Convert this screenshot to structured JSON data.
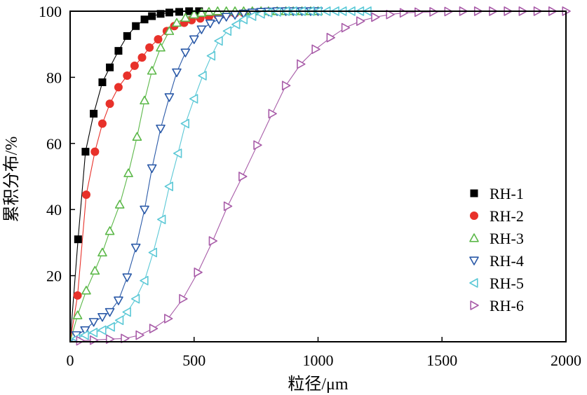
{
  "chart_data": {
    "type": "scatter",
    "xlabel": "粒径/μm",
    "ylabel": "累积分布/%",
    "xlim": [
      0,
      2000
    ],
    "ylim": [
      0,
      100
    ],
    "xticks": [
      0,
      500,
      1000,
      1500,
      2000
    ],
    "yticks": [
      20,
      40,
      60,
      80,
      100
    ],
    "xtick_labels": [
      "0",
      "500",
      "1000",
      "1500",
      "2000"
    ],
    "ytick_labels": [
      "20",
      "40",
      "60",
      "80",
      "100"
    ],
    "legend_position": "right-center",
    "series": [
      {
        "name": "RH-1",
        "marker": "square",
        "color": "#000000",
        "filled": true,
        "x": [
          32,
          62,
          95,
          130,
          160,
          195,
          230,
          265,
          300,
          330,
          365,
          400,
          440,
          480,
          520
        ],
        "y": [
          31,
          57.5,
          69,
          78.5,
          83,
          88,
          92.5,
          95.5,
          97.5,
          98.5,
          99.2,
          99.6,
          99.8,
          100,
          100
        ]
      },
      {
        "name": "RH-2",
        "marker": "circle",
        "color": "#e8312a",
        "filled": true,
        "x": [
          30,
          65,
          100,
          130,
          160,
          195,
          230,
          260,
          290,
          320,
          355,
          390,
          420,
          460,
          490,
          525,
          560,
          595,
          630,
          665,
          700
        ],
        "y": [
          14,
          44.5,
          57.5,
          66,
          72,
          77,
          80.5,
          83.5,
          86,
          89,
          91.5,
          94,
          95.5,
          96.5,
          97.3,
          97.8,
          98.3,
          98.7,
          99,
          99.3,
          99.5
        ]
      },
      {
        "name": "RH-3",
        "marker": "triangle-up",
        "color": "#5cb849",
        "filled": false,
        "x": [
          30,
          65,
          100,
          130,
          160,
          200,
          235,
          270,
          300,
          330,
          365,
          400,
          430,
          465,
          500,
          530,
          560,
          595,
          630,
          665,
          700,
          735,
          770,
          800,
          835,
          870,
          900,
          935,
          970,
          1000
        ],
        "y": [
          8,
          15.5,
          21.5,
          27,
          33.5,
          41.5,
          51,
          62,
          73,
          82,
          89,
          94,
          96.5,
          98,
          99,
          99.5,
          99.8,
          100,
          100,
          100,
          100,
          100,
          100,
          100,
          100,
          100,
          100,
          100,
          100,
          100
        ]
      },
      {
        "name": "RH-4",
        "marker": "triangle-down",
        "color": "#2b5aa8",
        "filled": false,
        "x": [
          25,
          60,
          95,
          130,
          160,
          195,
          230,
          265,
          300,
          330,
          365,
          400,
          430,
          465,
          500,
          530,
          565,
          600,
          630,
          665,
          700,
          735,
          770,
          800,
          835,
          870,
          900,
          935,
          970,
          1000
        ],
        "y": [
          2,
          3.5,
          6,
          7.5,
          9,
          12.5,
          19.5,
          28.5,
          40,
          52.5,
          64.5,
          74,
          81.5,
          87.5,
          91.5,
          94.5,
          96.3,
          97.5,
          98.3,
          98.9,
          99.3,
          99.6,
          99.8,
          99.9,
          100,
          100,
          100,
          100,
          100,
          100
        ]
      },
      {
        "name": "RH-5",
        "marker": "triangle-left",
        "color": "#5bc8d6",
        "filled": false,
        "x": [
          25,
          60,
          95,
          130,
          165,
          200,
          230,
          265,
          300,
          335,
          370,
          400,
          435,
          465,
          500,
          535,
          570,
          600,
          635,
          670,
          700,
          735,
          770,
          800,
          835,
          870,
          900,
          935,
          970,
          1000,
          1035,
          1070,
          1100,
          1135,
          1170,
          1200
        ],
        "y": [
          1,
          2,
          2.8,
          3.5,
          4.5,
          6.5,
          9,
          13,
          18.5,
          27,
          37,
          47,
          57,
          66,
          73.5,
          80.5,
          86.5,
          91,
          94,
          96,
          97.5,
          98.5,
          99.2,
          99.6,
          99.8,
          100,
          100,
          100,
          100,
          100,
          100,
          100,
          100,
          100,
          100,
          100
        ]
      },
      {
        "name": "RH-6",
        "marker": "triangle-right",
        "color": "#a85ca8",
        "filled": false,
        "x": [
          40,
          95,
          160,
          220,
          280,
          335,
          395,
          455,
          515,
          575,
          635,
          695,
          755,
          815,
          870,
          930,
          990,
          1050,
          1110,
          1170,
          1230,
          1290,
          1345,
          1405,
          1465,
          1525,
          1585,
          1645,
          1705,
          1765,
          1825,
          1885,
          1945,
          2000
        ],
        "y": [
          0.3,
          0.5,
          0.8,
          1,
          2,
          4,
          7,
          13,
          21,
          30.5,
          41,
          50,
          59.5,
          69,
          77.5,
          84,
          88.5,
          92,
          95,
          97,
          98.2,
          99,
          99.5,
          99.7,
          99.8,
          99.9,
          100,
          100,
          100,
          100,
          100,
          100,
          100,
          100
        ]
      }
    ]
  }
}
